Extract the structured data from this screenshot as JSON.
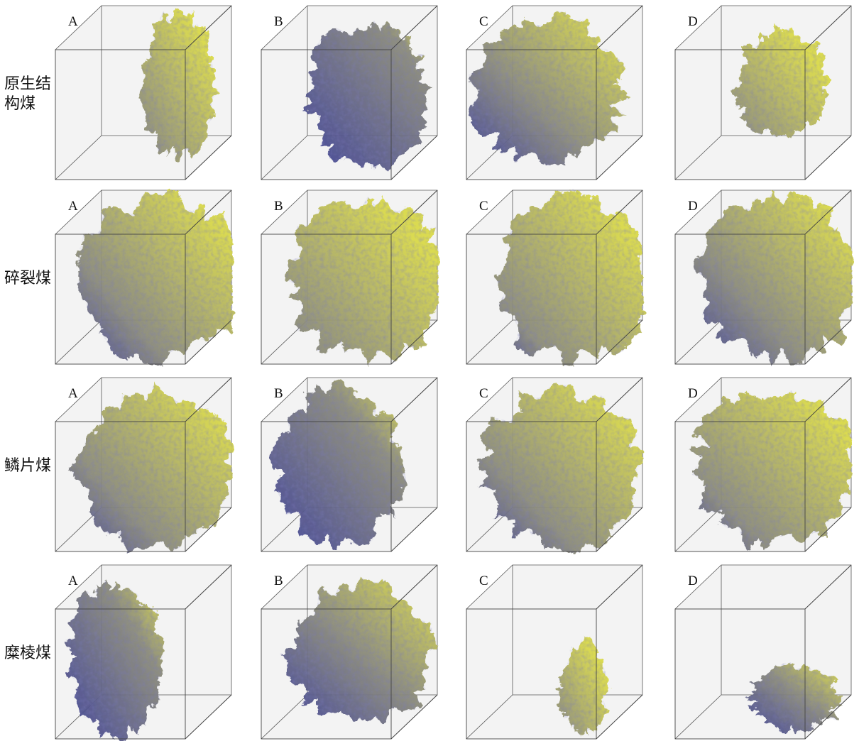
{
  "rows": [
    {
      "label": "原生结构煤",
      "panels": [
        "A",
        "B",
        "C",
        "D"
      ]
    },
    {
      "label": "碎裂煤",
      "panels": [
        "A",
        "B",
        "C",
        "D"
      ]
    },
    {
      "label": "鳞片煤",
      "panels": [
        "A",
        "B",
        "C",
        "D"
      ]
    },
    {
      "label": "糜棱煤",
      "panels": [
        "A",
        "B",
        "C",
        "D"
      ]
    }
  ]
}
